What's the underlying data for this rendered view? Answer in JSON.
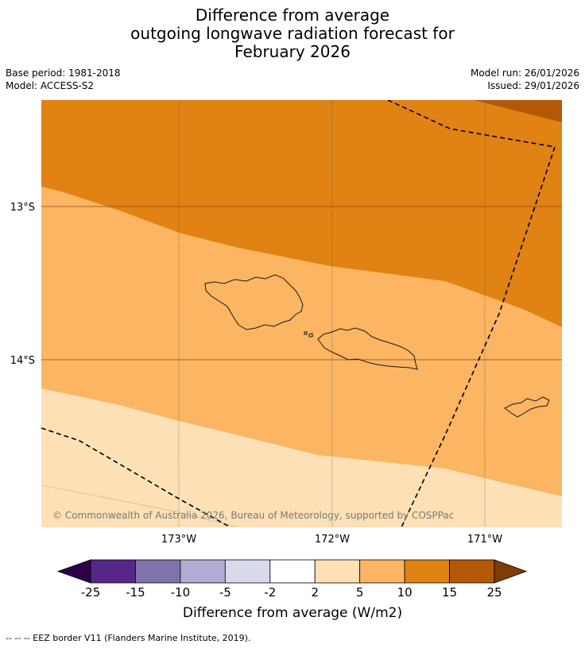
{
  "title": {
    "line1": "Difference from average",
    "line2": "outgoing longwave radiation forecast for",
    "line3": "February 2026"
  },
  "meta": {
    "base_period": "Base period: 1981-2018",
    "model": "Model: ACCESS-S2",
    "model_run": "Model run: 26/01/2026",
    "issued": "Issued: 29/01/2026"
  },
  "map": {
    "lat_labels": [
      "13°S",
      "14°S"
    ],
    "lon_labels": [
      "173°W",
      "172°W",
      "171°W"
    ],
    "copyright": "© Commonwealth of Australia 2026, Bureau of Meteorology, supported by COSPPac",
    "colors": {
      "bin_2_5": "#fde0b6",
      "bin_5_10": "#fbb563",
      "bin_10_15": "#e08214",
      "bin_15_25": "#b35806"
    }
  },
  "colorbar": {
    "ticks": [
      "-25",
      "-15",
      "-10",
      "-5",
      "-2",
      "2",
      "5",
      "10",
      "15",
      "25"
    ],
    "colors": [
      "#542788",
      "#8073ac",
      "#b2abd2",
      "#d8daeb",
      "#ffffff",
      "#fde0b6",
      "#fbb563",
      "#e08214",
      "#b35806"
    ],
    "under_color": "#2d004b",
    "over_color": "#7f3b08",
    "label": "Difference from average (W/m2)"
  },
  "footnote": "--  --  -- EEZ border V11 (Flanders Marine Institute, 2019)."
}
